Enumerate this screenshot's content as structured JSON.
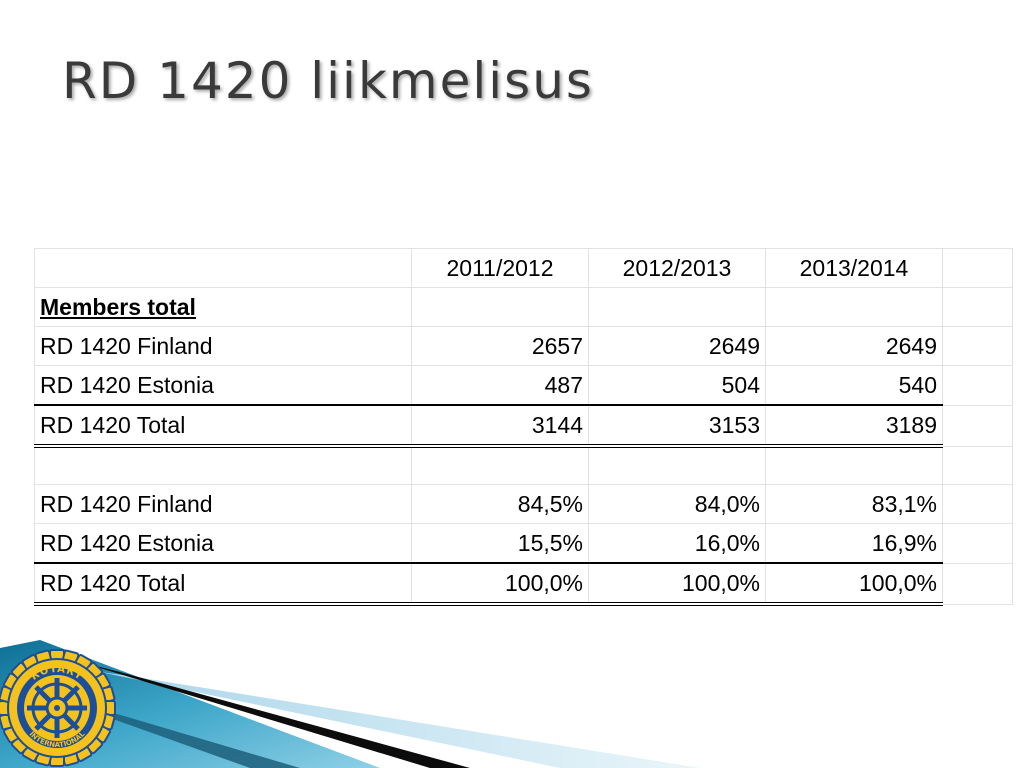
{
  "slide": {
    "title": "RD 1420 liikmelisus"
  },
  "table": {
    "columns": [
      "",
      "2011/2012",
      "2012/2013",
      "2013/2014"
    ],
    "section_label": "Members total",
    "counts": [
      {
        "label": "RD 1420 Finland",
        "values": [
          "2657",
          "2649",
          "2649"
        ]
      },
      {
        "label": "RD 1420 Estonia",
        "values": [
          "487",
          "504",
          "540"
        ]
      },
      {
        "label": "RD 1420 Total",
        "values": [
          "3144",
          "3153",
          "3189"
        ]
      }
    ],
    "percentages": [
      {
        "label": "RD 1420 Finland",
        "values": [
          "84,5%",
          "84,0%",
          "83,1%"
        ]
      },
      {
        "label": "RD 1420 Estonia",
        "values": [
          "15,5%",
          "16,0%",
          "16,9%"
        ]
      },
      {
        "label": "RD 1420 Total",
        "values": [
          "100,0%",
          "100,0%",
          "100,0%"
        ]
      }
    ]
  },
  "logo": {
    "text_top": "ROTARY",
    "text_bottom": "INTERNATIONAL",
    "colors": {
      "gold": "#f4c21b",
      "blue": "#1b4f9c"
    }
  },
  "colors": {
    "title": "#3a3a3a",
    "accent_teal": "#2a8fb3",
    "accent_light": "#cfe6f1"
  }
}
